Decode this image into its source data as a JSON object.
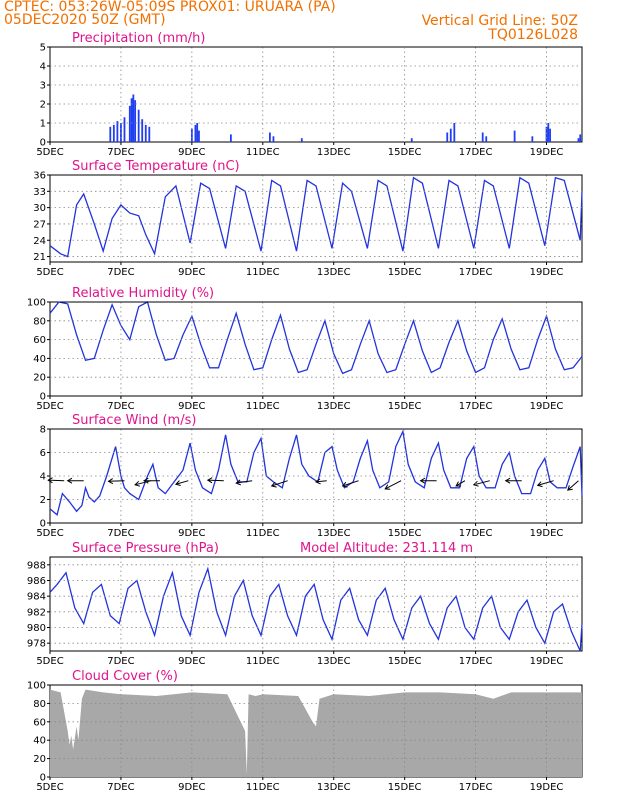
{
  "header": {
    "line1": "CPTEC:   053:26W-05:09S   PROX01: URUARA (PA)",
    "date": "05DEC2020 50Z (GMT)",
    "grid_note": "Vertical Grid Line: 50Z",
    "code": "TQ0126L028"
  },
  "colors": {
    "header": "#f07000",
    "title": "#e0148c",
    "line": "#2233dd",
    "bar": "#1f3ff0",
    "cloud": "#a8a8a8",
    "arrow": "#000000"
  },
  "chart_data": [
    {
      "type": "bar",
      "title": "Precipitation (mm/h)",
      "ylim": [
        0,
        5
      ],
      "yticks": [
        0,
        1,
        2,
        3,
        4,
        5
      ],
      "xlim": [
        0,
        15
      ],
      "xticks": [
        "5DEC",
        "7DEC",
        "9DEC",
        "11DEC",
        "13DEC",
        "15DEC",
        "17DEC",
        "19DEC"
      ],
      "grid": true,
      "bars": [
        [
          1.7,
          0.8
        ],
        [
          1.8,
          0.9
        ],
        [
          1.9,
          1.1
        ],
        [
          2.0,
          1.0
        ],
        [
          2.1,
          1.3
        ],
        [
          2.25,
          1.9
        ],
        [
          2.3,
          2.3
        ],
        [
          2.35,
          2.5
        ],
        [
          2.4,
          2.2
        ],
        [
          2.5,
          1.7
        ],
        [
          2.6,
          1.2
        ],
        [
          2.7,
          0.9
        ],
        [
          2.8,
          0.8
        ],
        [
          4.0,
          0.7
        ],
        [
          4.1,
          0.9
        ],
        [
          4.15,
          1.0
        ],
        [
          4.2,
          0.6
        ],
        [
          5.1,
          0.4
        ],
        [
          6.2,
          0.5
        ],
        [
          6.3,
          0.3
        ],
        [
          7.1,
          0.2
        ],
        [
          10.2,
          0.2
        ],
        [
          11.2,
          0.5
        ],
        [
          11.3,
          0.7
        ],
        [
          11.4,
          1.0
        ],
        [
          12.2,
          0.5
        ],
        [
          12.3,
          0.3
        ],
        [
          13.1,
          0.6
        ],
        [
          13.6,
          0.3
        ],
        [
          14.0,
          0.8
        ],
        [
          14.05,
          1.0
        ],
        [
          14.1,
          0.7
        ],
        [
          14.9,
          0.2
        ],
        [
          14.95,
          0.4
        ]
      ]
    },
    {
      "type": "line",
      "title": "Surface Temperature (nC)",
      "ylim": [
        20,
        36
      ],
      "yticks": [
        21,
        24,
        27,
        30,
        33,
        36
      ],
      "x": [
        0,
        0.3,
        0.5,
        0.75,
        0.95,
        1.25,
        1.5,
        1.75,
        2.0,
        2.25,
        2.5,
        2.7,
        2.95,
        3.25,
        3.55,
        3.95,
        4.25,
        4.5,
        4.95,
        5.25,
        5.5,
        5.95,
        6.25,
        6.5,
        6.95,
        7.25,
        7.5,
        7.95,
        8.25,
        8.5,
        8.95,
        9.25,
        9.5,
        9.95,
        10.25,
        10.5,
        10.95,
        11.25,
        11.5,
        11.95,
        12.25,
        12.5,
        12.95,
        13.25,
        13.5,
        13.95,
        14.25,
        14.5,
        14.95,
        15.0
      ],
      "y": [
        23,
        21.5,
        21,
        30.5,
        32.5,
        27,
        22,
        28,
        30.5,
        29,
        28.5,
        25,
        21.5,
        32,
        34,
        23.5,
        34.5,
        33.5,
        22.5,
        34,
        33,
        22,
        35,
        34,
        22,
        35,
        34,
        22.5,
        34.5,
        33,
        22.5,
        35,
        34,
        22,
        35.5,
        34.5,
        22.5,
        35,
        34,
        22.5,
        35,
        34,
        22.5,
        35.5,
        34.5,
        23,
        35.5,
        35,
        24,
        33
      ]
    },
    {
      "type": "line",
      "title": "Relative Humidity (%)",
      "ylim": [
        0,
        100
      ],
      "yticks": [
        0,
        20,
        40,
        60,
        80,
        100
      ],
      "x": [
        0,
        0.25,
        0.5,
        0.75,
        1.0,
        1.25,
        1.5,
        1.75,
        2.0,
        2.25,
        2.5,
        2.75,
        3.0,
        3.25,
        3.5,
        3.75,
        4.0,
        4.25,
        4.5,
        4.75,
        5.0,
        5.25,
        5.5,
        5.75,
        6.0,
        6.25,
        6.5,
        6.75,
        7.0,
        7.25,
        7.5,
        7.75,
        8.0,
        8.25,
        8.5,
        8.75,
        9.0,
        9.25,
        9.5,
        9.75,
        10.0,
        10.25,
        10.5,
        10.75,
        11.0,
        11.25,
        11.5,
        11.75,
        12.0,
        12.25,
        12.5,
        12.75,
        13.0,
        13.25,
        13.5,
        13.75,
        14.0,
        14.25,
        14.5,
        14.75,
        15.0
      ],
      "y": [
        88,
        100,
        98,
        65,
        38,
        40,
        70,
        97,
        75,
        60,
        95,
        100,
        65,
        38,
        40,
        65,
        85,
        55,
        30,
        30,
        60,
        88,
        55,
        28,
        30,
        60,
        86,
        50,
        25,
        28,
        55,
        80,
        45,
        24,
        28,
        55,
        80,
        45,
        25,
        28,
        55,
        80,
        48,
        25,
        30,
        57,
        80,
        48,
        25,
        30,
        60,
        82,
        50,
        28,
        30,
        60,
        85,
        50,
        28,
        30,
        42
      ]
    },
    {
      "type": "line",
      "title": "Surface Wind (m/s)",
      "ylim": [
        0,
        8
      ],
      "yticks": [
        0,
        2,
        4,
        6,
        8
      ],
      "x": [
        0,
        0.2,
        0.35,
        0.55,
        0.75,
        0.9,
        1.0,
        1.1,
        1.25,
        1.4,
        1.6,
        1.85,
        2.0,
        2.1,
        2.25,
        2.5,
        2.75,
        2.9,
        3.05,
        3.25,
        3.5,
        3.75,
        3.95,
        4.1,
        4.3,
        4.55,
        4.75,
        4.95,
        5.1,
        5.3,
        5.55,
        5.75,
        5.95,
        6.1,
        6.3,
        6.55,
        6.75,
        6.95,
        7.1,
        7.3,
        7.55,
        7.75,
        7.95,
        8.1,
        8.3,
        8.55,
        8.75,
        8.95,
        9.1,
        9.3,
        9.55,
        9.75,
        9.95,
        10.1,
        10.3,
        10.55,
        10.75,
        10.95,
        11.1,
        11.3,
        11.55,
        11.75,
        11.95,
        12.1,
        12.3,
        12.55,
        12.75,
        12.95,
        13.1,
        13.3,
        13.55,
        13.75,
        13.95,
        14.1,
        14.3,
        14.55,
        14.75,
        14.95,
        15.0
      ],
      "y": [
        1.2,
        0.7,
        2.5,
        1.8,
        1.0,
        1.5,
        3.0,
        2.2,
        1.8,
        2.3,
        4.0,
        6.5,
        4.0,
        3.0,
        2.5,
        2.0,
        4.0,
        5.0,
        3.0,
        2.5,
        3.5,
        4.5,
        6.8,
        4.5,
        3.0,
        2.5,
        4.5,
        7.5,
        5.0,
        3.5,
        3.5,
        6.0,
        7.2,
        4.0,
        3.5,
        3.0,
        5.5,
        7.5,
        5.0,
        4.0,
        3.5,
        6.0,
        6.5,
        4.5,
        3.0,
        3.5,
        5.5,
        7.0,
        4.5,
        3.0,
        3.5,
        6.5,
        7.8,
        5.0,
        3.5,
        3.0,
        5.5,
        6.8,
        4.5,
        3.0,
        3.0,
        5.5,
        6.5,
        4.0,
        3.0,
        3.0,
        5.0,
        6.0,
        4.0,
        2.5,
        2.5,
        4.5,
        5.5,
        3.5,
        3.0,
        3.0,
        4.8,
        6.5,
        2.3
      ],
      "vectors": [
        [
          0.4,
          3.6,
          -0.45,
          0.05
        ],
        [
          0.95,
          3.6,
          -0.45,
          0.0
        ],
        [
          2.1,
          3.6,
          -0.45,
          -0.05
        ],
        [
          2.85,
          3.6,
          -0.45,
          -0.35
        ],
        [
          3.1,
          3.6,
          -0.45,
          0.0
        ],
        [
          3.9,
          3.6,
          -0.35,
          -0.3
        ],
        [
          4.9,
          3.6,
          -0.45,
          0.05
        ],
        [
          5.7,
          3.6,
          -0.45,
          -0.2
        ],
        [
          6.7,
          3.6,
          -0.45,
          -0.45
        ],
        [
          7.8,
          3.6,
          -0.3,
          -0.1
        ],
        [
          8.7,
          3.6,
          -0.45,
          -0.45
        ],
        [
          9.9,
          3.6,
          -0.45,
          -0.7
        ],
        [
          10.9,
          3.6,
          -0.45,
          0.0
        ],
        [
          11.7,
          3.6,
          -0.25,
          -0.45
        ],
        [
          12.4,
          3.6,
          -0.45,
          -0.35
        ],
        [
          13.3,
          3.6,
          -0.45,
          0.0
        ],
        [
          14.2,
          3.6,
          -0.45,
          -0.4
        ],
        [
          14.9,
          3.6,
          -0.3,
          -0.8
        ]
      ]
    },
    {
      "type": "line",
      "title": "Surface Pressure (hPa)",
      "annotation": "Model Altitude: 231.114 m",
      "ylim": [
        977,
        989
      ],
      "yticks": [
        978,
        980,
        982,
        984,
        986,
        988
      ],
      "x": [
        0,
        0.2,
        0.45,
        0.7,
        0.95,
        1.2,
        1.45,
        1.7,
        1.95,
        2.2,
        2.45,
        2.7,
        2.95,
        3.2,
        3.45,
        3.7,
        3.95,
        4.2,
        4.45,
        4.7,
        4.95,
        5.2,
        5.45,
        5.7,
        5.95,
        6.2,
        6.45,
        6.7,
        6.95,
        7.2,
        7.45,
        7.7,
        7.95,
        8.2,
        8.45,
        8.7,
        8.95,
        9.2,
        9.45,
        9.7,
        9.95,
        10.2,
        10.45,
        10.7,
        10.95,
        11.2,
        11.45,
        11.7,
        11.95,
        12.2,
        12.45,
        12.7,
        12.95,
        13.2,
        13.45,
        13.7,
        13.95,
        14.2,
        14.45,
        14.7,
        14.95,
        15.0
      ],
      "y": [
        984.5,
        985.5,
        987,
        982.5,
        980.5,
        984.5,
        985.5,
        981.5,
        980.5,
        985,
        986,
        982,
        979,
        984,
        987,
        981.5,
        979,
        984.5,
        987.5,
        982,
        979,
        984,
        986,
        981.5,
        979,
        984,
        985.5,
        981.5,
        979,
        984,
        985.5,
        981,
        978.5,
        983.5,
        985,
        981,
        979,
        983.5,
        985,
        981,
        978.5,
        982.5,
        984,
        980.5,
        978.5,
        982.5,
        984,
        980,
        978.5,
        982.5,
        984,
        980,
        978.5,
        982,
        983.5,
        980,
        978,
        982,
        983,
        979.5,
        977,
        980.5
      ]
    },
    {
      "type": "area",
      "title": "Cloud Cover (%)",
      "ylim": [
        0,
        100
      ],
      "yticks": [
        0,
        20,
        40,
        60,
        80,
        100
      ],
      "x": [
        0,
        0.3,
        0.5,
        0.55,
        0.6,
        0.65,
        0.75,
        0.8,
        0.9,
        1.0,
        1.5,
        2.0,
        3.0,
        4.0,
        5.0,
        5.5,
        5.55,
        5.6,
        5.8,
        6.0,
        7.0,
        7.4,
        7.5,
        7.6,
        8.0,
        9.0,
        10.0,
        11.0,
        12.0,
        12.5,
        13.0,
        14.0,
        15.0
      ],
      "y": [
        95,
        92,
        50,
        35,
        45,
        30,
        55,
        40,
        85,
        95,
        92,
        90,
        88,
        92,
        90,
        50,
        3,
        90,
        88,
        90,
        88,
        60,
        55,
        85,
        90,
        88,
        92,
        92,
        90,
        85,
        92,
        92,
        92
      ]
    }
  ]
}
